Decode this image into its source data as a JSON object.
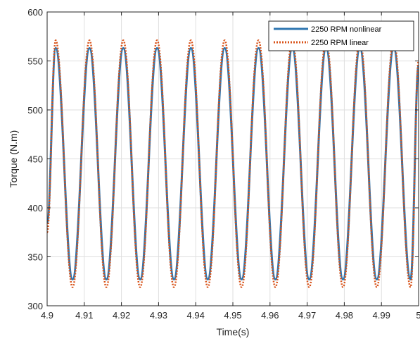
{
  "chart_data": {
    "type": "line",
    "title": "",
    "xlabel": "Time(s)",
    "ylabel": "Torque (N.m)",
    "xlim": [
      4.9,
      5.0
    ],
    "ylim": [
      300,
      600
    ],
    "xticks": [
      4.9,
      4.91,
      4.92,
      4.93,
      4.94,
      4.95,
      4.96,
      4.97,
      4.98,
      4.99,
      5.0
    ],
    "xtick_labels": [
      "4.9",
      "4.91",
      "4.92",
      "4.93",
      "4.94",
      "4.95",
      "4.96",
      "4.97",
      "4.98",
      "4.99",
      "5"
    ],
    "yticks": [
      300,
      350,
      400,
      450,
      500,
      550,
      600
    ],
    "ytick_labels": [
      "300",
      "350",
      "400",
      "450",
      "500",
      "550",
      "600"
    ],
    "grid": true,
    "legend_position": "top-right",
    "series": [
      {
        "name": "2250 RPM nonlinear",
        "color": "#2e76b0",
        "style": "solid",
        "x": [
          4.9,
          4.9023,
          4.90685,
          4.9114,
          4.91595,
          4.9205,
          4.92505,
          4.9296,
          4.93415,
          4.9387,
          4.94325,
          4.9478,
          4.95235,
          4.9569,
          4.96145,
          4.966,
          4.97055,
          4.9751,
          4.97965,
          4.9842,
          4.98875,
          4.9933,
          4.99785,
          5.0
        ],
        "y": [
          385,
          563,
          327,
          563,
          327,
          563,
          327,
          563,
          327,
          563,
          327,
          563,
          327,
          563,
          327,
          563,
          327,
          563,
          327,
          563,
          327,
          563,
          327,
          545
        ]
      },
      {
        "name": "2250 RPM linear",
        "color": "#d95319",
        "style": "dotted",
        "x": [
          4.9,
          4.9023,
          4.90685,
          4.9114,
          4.91595,
          4.9205,
          4.92505,
          4.9296,
          4.93415,
          4.9387,
          4.94325,
          4.9478,
          4.95235,
          4.9569,
          4.96145,
          4.966,
          4.97055,
          4.9751,
          4.97965,
          4.9842,
          4.98875,
          4.9933,
          4.99785,
          5.0
        ],
        "y": [
          375,
          571,
          319,
          571,
          319,
          571,
          319,
          571,
          319,
          571,
          319,
          571,
          319,
          571,
          319,
          571,
          319,
          571,
          319,
          571,
          319,
          571,
          319,
          550
        ]
      }
    ]
  }
}
